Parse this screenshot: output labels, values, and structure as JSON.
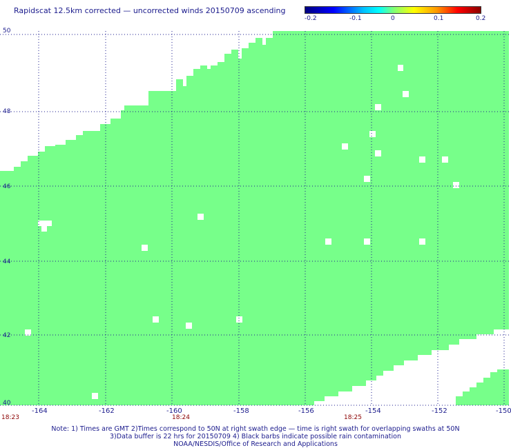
{
  "title": "Rapidscat 12.5km corrected — uncorrected winds 20150709 ascending",
  "colorbar": {
    "labels": [
      "-0.2",
      "-0.1",
      "0",
      "0.1",
      "0.2"
    ],
    "min": -0.2,
    "max": 0.2
  },
  "axes": {
    "lat_labels": [
      "50",
      "48",
      "46",
      "44",
      "42",
      "40"
    ],
    "lon_labels": [
      "-164",
      "-162",
      "-160",
      "-158",
      "-156",
      "-154",
      "-152",
      "-150"
    ],
    "time_labels": [
      "18:23",
      "18:24",
      "18:25"
    ]
  },
  "colors": {
    "swath": "#77ff8a",
    "grid": "#1a1a8c",
    "text": "#1a1a8c",
    "time": "#8b0000"
  },
  "notes": [
    "Note: 1) Times are GMT 2)Times correspond to 50N at right swath edge — time is right swath for overlapping swaths at 50N",
    "3)Data buffer is 22 hrs for 20150709 4) Black barbs indicate possible rain contamination",
    "NOAA/NESDIS/Office of Research and Applications"
  ]
}
